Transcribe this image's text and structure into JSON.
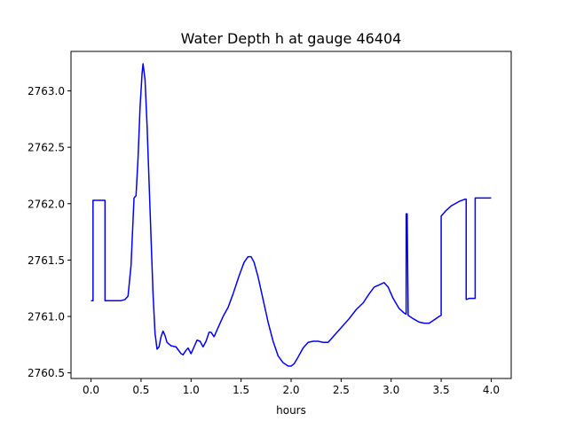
{
  "chart_data": {
    "type": "line",
    "title": "Water Depth h at gauge 46404",
    "xlabel": "hours",
    "ylabel": "",
    "xlim": [
      -0.2,
      4.2
    ],
    "ylim": [
      2760.45,
      2763.35
    ],
    "xticks": [
      0.0,
      0.5,
      1.0,
      1.5,
      2.0,
      2.5,
      3.0,
      3.5,
      4.0
    ],
    "xtick_labels": [
      "0.0",
      "0.5",
      "1.0",
      "1.5",
      "2.0",
      "2.5",
      "3.0",
      "3.5",
      "4.0"
    ],
    "yticks": [
      2760.5,
      2761.0,
      2761.5,
      2762.0,
      2762.5,
      2763.0
    ],
    "ytick_labels": [
      "2760.5",
      "2761.0",
      "2761.5",
      "2762.0",
      "2762.5",
      "2763.0"
    ],
    "grid": false,
    "legend": "none",
    "series": [
      {
        "color": "#0000ff",
        "points": [
          [
            0.0,
            2761.14
          ],
          [
            0.02,
            2761.14
          ],
          [
            0.02,
            2762.03
          ],
          [
            0.14,
            2762.03
          ],
          [
            0.14,
            2761.14
          ],
          [
            0.22,
            2761.14
          ],
          [
            0.3,
            2761.14
          ],
          [
            0.34,
            2761.15
          ],
          [
            0.37,
            2761.18
          ],
          [
            0.4,
            2761.45
          ],
          [
            0.42,
            2761.85
          ],
          [
            0.43,
            2762.05
          ],
          [
            0.45,
            2762.07
          ],
          [
            0.47,
            2762.4
          ],
          [
            0.49,
            2762.85
          ],
          [
            0.51,
            2763.15
          ],
          [
            0.52,
            2763.24
          ],
          [
            0.54,
            2763.1
          ],
          [
            0.56,
            2762.7
          ],
          [
            0.58,
            2762.2
          ],
          [
            0.6,
            2761.7
          ],
          [
            0.62,
            2761.2
          ],
          [
            0.64,
            2760.85
          ],
          [
            0.66,
            2760.71
          ],
          [
            0.68,
            2760.73
          ],
          [
            0.7,
            2760.82
          ],
          [
            0.72,
            2760.87
          ],
          [
            0.74,
            2760.83
          ],
          [
            0.76,
            2760.77
          ],
          [
            0.8,
            2760.74
          ],
          [
            0.85,
            2760.73
          ],
          [
            0.9,
            2760.67
          ],
          [
            0.92,
            2760.66
          ],
          [
            0.95,
            2760.7
          ],
          [
            0.97,
            2760.72
          ],
          [
            1.0,
            2760.67
          ],
          [
            1.03,
            2760.73
          ],
          [
            1.06,
            2760.79
          ],
          [
            1.09,
            2760.78
          ],
          [
            1.12,
            2760.73
          ],
          [
            1.15,
            2760.78
          ],
          [
            1.18,
            2760.86
          ],
          [
            1.2,
            2760.86
          ],
          [
            1.23,
            2760.82
          ],
          [
            1.27,
            2760.9
          ],
          [
            1.32,
            2761.0
          ],
          [
            1.37,
            2761.08
          ],
          [
            1.42,
            2761.2
          ],
          [
            1.48,
            2761.36
          ],
          [
            1.53,
            2761.48
          ],
          [
            1.57,
            2761.53
          ],
          [
            1.6,
            2761.53
          ],
          [
            1.63,
            2761.48
          ],
          [
            1.67,
            2761.35
          ],
          [
            1.72,
            2761.15
          ],
          [
            1.77,
            2760.95
          ],
          [
            1.82,
            2760.78
          ],
          [
            1.87,
            2760.65
          ],
          [
            1.92,
            2760.59
          ],
          [
            1.97,
            2760.56
          ],
          [
            2.0,
            2760.56
          ],
          [
            2.03,
            2760.58
          ],
          [
            2.07,
            2760.64
          ],
          [
            2.12,
            2760.72
          ],
          [
            2.17,
            2760.77
          ],
          [
            2.22,
            2760.78
          ],
          [
            2.27,
            2760.78
          ],
          [
            2.32,
            2760.77
          ],
          [
            2.37,
            2760.77
          ],
          [
            2.42,
            2760.82
          ],
          [
            2.5,
            2760.9
          ],
          [
            2.58,
            2760.98
          ],
          [
            2.65,
            2761.06
          ],
          [
            2.72,
            2761.12
          ],
          [
            2.78,
            2761.2
          ],
          [
            2.83,
            2761.26
          ],
          [
            2.88,
            2761.28
          ],
          [
            2.93,
            2761.3
          ],
          [
            2.97,
            2761.26
          ],
          [
            3.02,
            2761.16
          ],
          [
            3.08,
            2761.07
          ],
          [
            3.13,
            2761.03
          ],
          [
            3.15,
            2761.02
          ],
          [
            3.15,
            2761.91
          ],
          [
            3.16,
            2761.91
          ],
          [
            3.17,
            2761.01
          ],
          [
            3.22,
            2760.98
          ],
          [
            3.28,
            2760.95
          ],
          [
            3.33,
            2760.94
          ],
          [
            3.38,
            2760.94
          ],
          [
            3.43,
            2760.97
          ],
          [
            3.48,
            2761.0
          ],
          [
            3.5,
            2761.01
          ],
          [
            3.5,
            2761.89
          ],
          [
            3.55,
            2761.94
          ],
          [
            3.6,
            2761.98
          ],
          [
            3.68,
            2762.02
          ],
          [
            3.74,
            2762.04
          ],
          [
            3.75,
            2762.04
          ],
          [
            3.75,
            2761.15
          ],
          [
            3.78,
            2761.16
          ],
          [
            3.82,
            2761.16
          ],
          [
            3.84,
            2761.16
          ],
          [
            3.84,
            2762.05
          ],
          [
            3.9,
            2762.05
          ],
          [
            4.0,
            2762.05
          ]
        ]
      }
    ]
  }
}
